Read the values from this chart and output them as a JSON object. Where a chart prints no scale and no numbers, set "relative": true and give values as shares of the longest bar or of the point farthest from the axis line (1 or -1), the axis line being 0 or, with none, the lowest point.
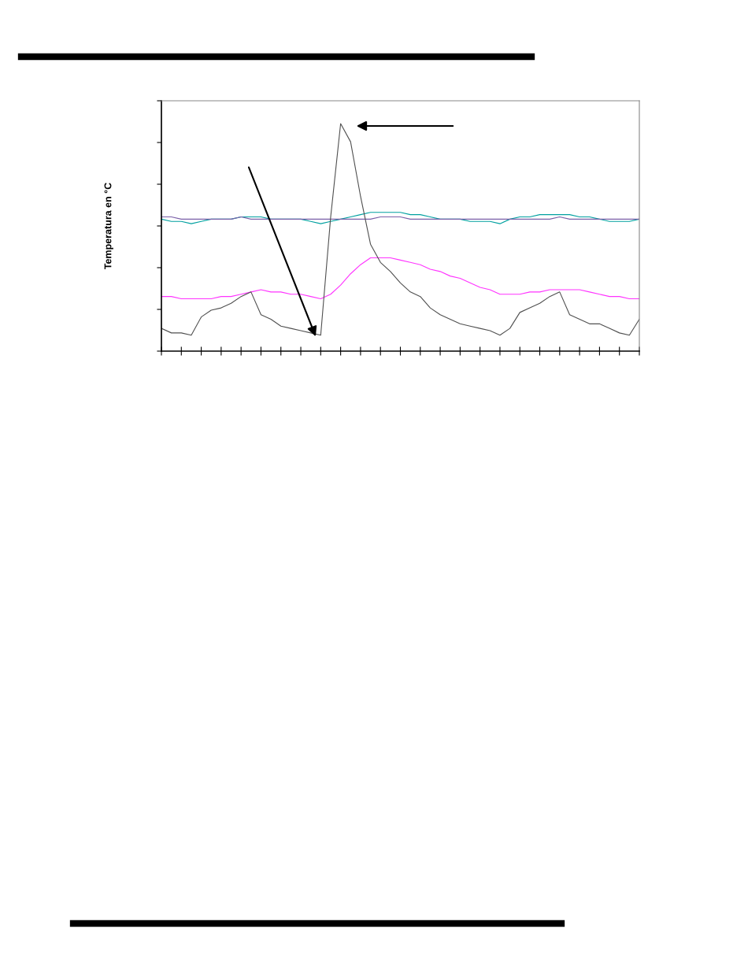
{
  "chart_data": {
    "type": "line",
    "ylabel": "Temperatura en °C",
    "relative": true,
    "tick_labels": false,
    "grid": false,
    "legend": false,
    "marker": "none",
    "line_style": "solid",
    "categories": [
      null,
      null,
      null,
      null,
      null,
      null,
      null,
      null,
      null,
      null,
      null,
      null,
      null,
      null,
      null,
      null,
      null,
      null,
      null,
      null,
      null,
      null,
      null,
      null,
      null,
      null,
      null,
      null,
      null,
      null,
      null,
      null,
      null,
      null,
      null,
      null,
      null,
      null,
      null,
      null,
      null,
      null,
      null,
      null,
      null,
      null,
      null,
      null,
      null
    ],
    "series": [
      {
        "color": "#00a0a0",
        "values": [
          0.58,
          0.57,
          0.57,
          0.56,
          0.57,
          0.58,
          0.58,
          0.58,
          0.59,
          0.59,
          0.59,
          0.58,
          0.58,
          0.58,
          0.58,
          0.57,
          0.56,
          0.57,
          0.58,
          0.59,
          0.6,
          0.61,
          0.61,
          0.61,
          0.61,
          0.6,
          0.6,
          0.59,
          0.58,
          0.58,
          0.58,
          0.57,
          0.57,
          0.57,
          0.56,
          0.58,
          0.59,
          0.59,
          0.6,
          0.6,
          0.6,
          0.6,
          0.59,
          0.59,
          0.58,
          0.57,
          0.57,
          0.57,
          0.58
        ]
      },
      {
        "color": "#7a5fa8",
        "values": [
          0.59,
          0.59,
          0.58,
          0.58,
          0.58,
          0.58,
          0.58,
          0.58,
          0.59,
          0.58,
          0.58,
          0.58,
          0.58,
          0.58,
          0.58,
          0.58,
          0.58,
          0.58,
          0.58,
          0.58,
          0.58,
          0.58,
          0.59,
          0.59,
          0.59,
          0.58,
          0.58,
          0.58,
          0.58,
          0.58,
          0.58,
          0.58,
          0.58,
          0.58,
          0.58,
          0.58,
          0.58,
          0.58,
          0.58,
          0.58,
          0.59,
          0.58,
          0.58,
          0.58,
          0.58,
          0.58,
          0.58,
          0.58,
          0.58
        ]
      },
      {
        "color": "#ff33ff",
        "values": [
          0.24,
          0.24,
          0.23,
          0.23,
          0.23,
          0.23,
          0.24,
          0.24,
          0.25,
          0.26,
          0.27,
          0.26,
          0.26,
          0.25,
          0.25,
          0.24,
          0.23,
          0.25,
          0.29,
          0.34,
          0.38,
          0.41,
          0.41,
          0.41,
          0.4,
          0.39,
          0.38,
          0.36,
          0.35,
          0.33,
          0.32,
          0.3,
          0.28,
          0.27,
          0.25,
          0.25,
          0.25,
          0.26,
          0.26,
          0.27,
          0.27,
          0.27,
          0.27,
          0.26,
          0.25,
          0.24,
          0.24,
          0.23,
          0.23
        ]
      },
      {
        "color": "#505050",
        "values": [
          0.1,
          0.08,
          0.08,
          0.07,
          0.15,
          0.18,
          0.19,
          0.21,
          0.24,
          0.26,
          0.16,
          0.14,
          0.11,
          0.1,
          0.09,
          0.08,
          0.07,
          0.59,
          1,
          0.92,
          0.68,
          0.47,
          0.39,
          0.35,
          0.3,
          0.26,
          0.24,
          0.19,
          0.16,
          0.14,
          0.12,
          0.11,
          0.1,
          0.09,
          0.07,
          0.1,
          0.17,
          0.19,
          0.21,
          0.24,
          0.26,
          0.16,
          0.14,
          0.12,
          0.12,
          0.1,
          0.08,
          0.07,
          0.14
        ]
      }
    ]
  }
}
